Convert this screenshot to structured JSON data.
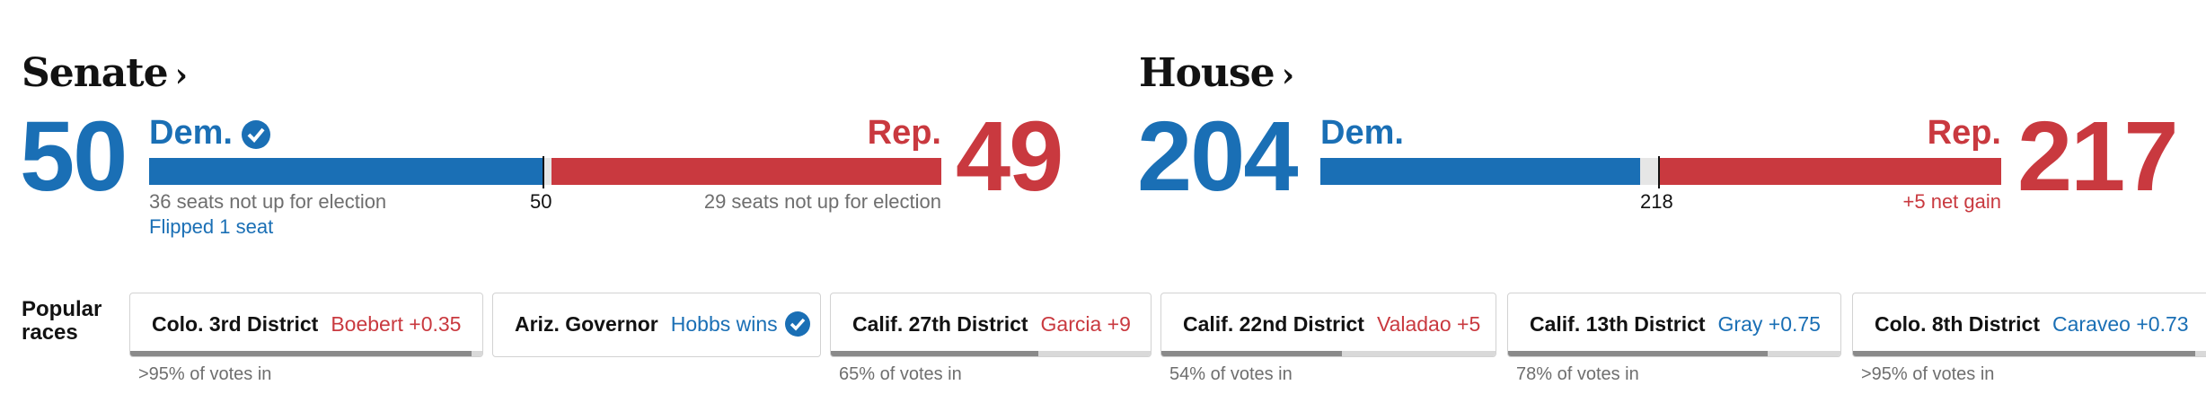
{
  "senate": {
    "heading": "Senate",
    "dem_seats": "50",
    "rep_seats": "49",
    "dem_label": "Dem.",
    "rep_label": "Rep.",
    "dem_called": true,
    "majority_mark": "50",
    "dem_note": "36 seats not up for election",
    "dem_note2": "Flipped 1 seat",
    "rep_note": "29 seats not up for election",
    "total_seats": 100
  },
  "house": {
    "heading": "House",
    "dem_seats": "204",
    "rep_seats": "217",
    "dem_label": "Dem.",
    "rep_label": "Rep.",
    "majority_mark": "218",
    "rep_note": "+5 net gain",
    "total_seats": 435
  },
  "popular": {
    "label_line1": "Popular",
    "label_line2": "races",
    "races": [
      {
        "race": "Colo. 3rd District",
        "status": "Boebert +0.35",
        "party": "rep",
        "note": ">95% of votes in",
        "reporting": 0.97
      },
      {
        "race": "Ariz. Governor",
        "status": "Hobbs wins",
        "party": "dem",
        "note": "",
        "called": true,
        "reporting": 0
      },
      {
        "race": "Calif. 27th District",
        "status": "Garcia +9",
        "party": "rep",
        "note": "65% of votes in",
        "reporting": 0.65
      },
      {
        "race": "Calif. 22nd District",
        "status": "Valadao +5",
        "party": "rep",
        "note": "54% of votes in",
        "reporting": 0.54
      },
      {
        "race": "Calif. 13th District",
        "status": "Gray +0.75",
        "party": "dem",
        "note": "78% of votes in",
        "reporting": 0.78
      },
      {
        "race": "Colo. 8th District",
        "status": "Caraveo +0.73",
        "party": "dem",
        "note": ">95% of votes in",
        "reporting": 0.97
      }
    ]
  },
  "icons": {
    "heading_chevron": "chevron-right-icon",
    "called": "check-circle-icon"
  },
  "colors": {
    "dem": "#1a6fb5",
    "rep": "#c9393f",
    "gray_text": "#6e6e6e"
  }
}
